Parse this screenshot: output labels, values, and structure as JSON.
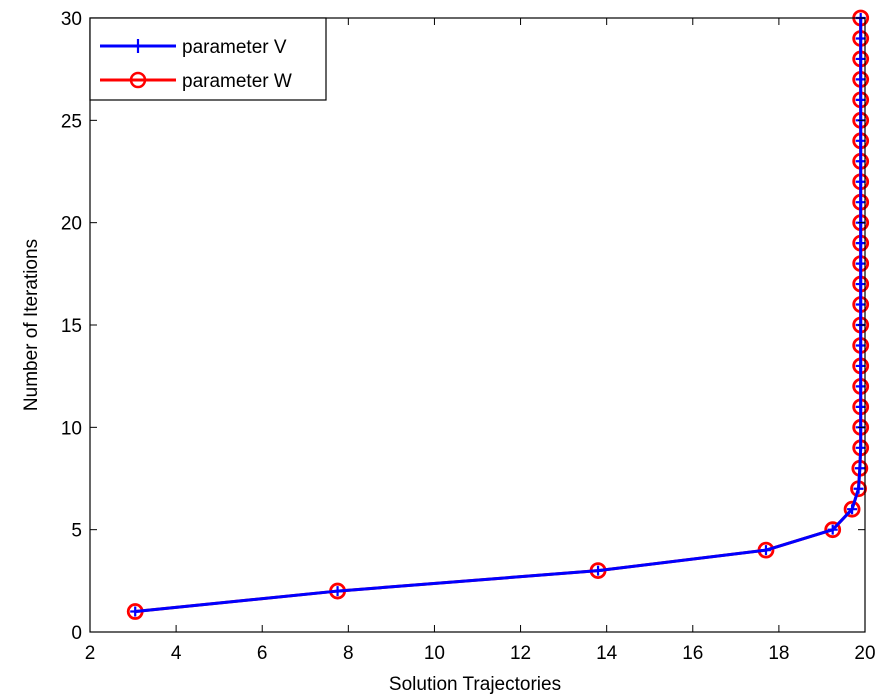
{
  "chart_data": {
    "type": "line",
    "xlabel": "Solution Trajectories",
    "ylabel": "Number of Iterations",
    "xlim": [
      2,
      20
    ],
    "ylim": [
      0,
      30
    ],
    "x_ticks": [
      "2",
      "4",
      "6",
      "8",
      "10",
      "12",
      "14",
      "16",
      "18",
      "20"
    ],
    "y_ticks": [
      "0",
      "5",
      "10",
      "15",
      "20",
      "25",
      "30"
    ],
    "grid": false,
    "legend_position": "top-left",
    "series": [
      {
        "name": "parameter V",
        "color": "#0000ff",
        "marker": "plus",
        "points": [
          [
            3.05,
            1
          ],
          [
            7.75,
            2
          ],
          [
            13.8,
            3
          ],
          [
            17.7,
            4
          ],
          [
            19.25,
            5
          ],
          [
            19.7,
            6
          ],
          [
            19.85,
            7
          ],
          [
            19.88,
            8
          ],
          [
            19.9,
            9
          ],
          [
            19.9,
            10
          ],
          [
            19.9,
            11
          ],
          [
            19.9,
            12
          ],
          [
            19.9,
            13
          ],
          [
            19.9,
            14
          ],
          [
            19.9,
            15
          ],
          [
            19.9,
            16
          ],
          [
            19.9,
            17
          ],
          [
            19.9,
            18
          ],
          [
            19.9,
            19
          ],
          [
            19.9,
            20
          ],
          [
            19.9,
            21
          ],
          [
            19.9,
            22
          ],
          [
            19.9,
            23
          ],
          [
            19.9,
            24
          ],
          [
            19.9,
            25
          ],
          [
            19.9,
            26
          ],
          [
            19.9,
            27
          ],
          [
            19.9,
            28
          ],
          [
            19.9,
            29
          ],
          [
            19.9,
            30
          ]
        ]
      },
      {
        "name": "parameter W",
        "color": "#ff0000",
        "marker": "circle",
        "points": [
          [
            3.05,
            1
          ],
          [
            7.75,
            2
          ],
          [
            13.8,
            3
          ],
          [
            17.7,
            4
          ],
          [
            19.25,
            5
          ],
          [
            19.7,
            6
          ],
          [
            19.85,
            7
          ],
          [
            19.88,
            8
          ],
          [
            19.9,
            9
          ],
          [
            19.9,
            10
          ],
          [
            19.9,
            11
          ],
          [
            19.9,
            12
          ],
          [
            19.9,
            13
          ],
          [
            19.9,
            14
          ],
          [
            19.9,
            15
          ],
          [
            19.9,
            16
          ],
          [
            19.9,
            17
          ],
          [
            19.9,
            18
          ],
          [
            19.9,
            19
          ],
          [
            19.9,
            20
          ],
          [
            19.9,
            21
          ],
          [
            19.9,
            22
          ],
          [
            19.9,
            23
          ],
          [
            19.9,
            24
          ],
          [
            19.9,
            25
          ],
          [
            19.9,
            26
          ],
          [
            19.9,
            27
          ],
          [
            19.9,
            28
          ],
          [
            19.9,
            29
          ],
          [
            19.9,
            30
          ]
        ]
      }
    ]
  }
}
